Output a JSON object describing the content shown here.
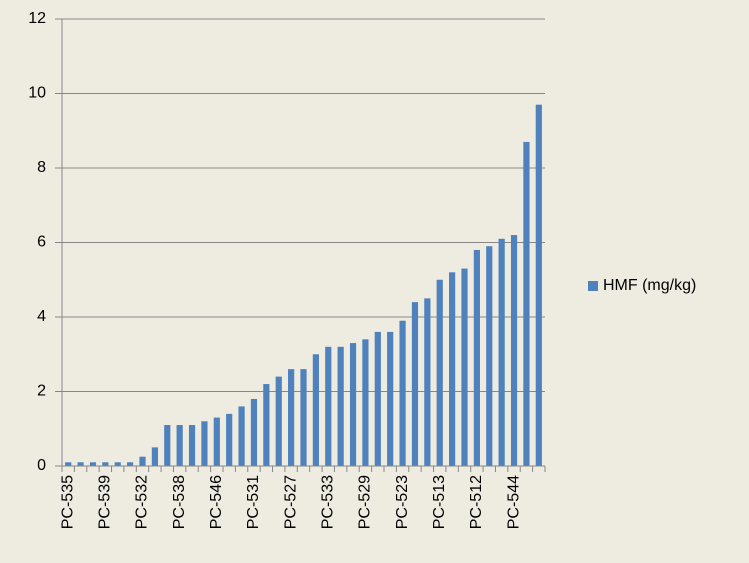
{
  "chart_data": {
    "type": "bar",
    "categories": [
      "PC-535",
      null,
      null,
      "PC-539",
      null,
      null,
      "PC-532",
      null,
      null,
      "PC-538",
      null,
      null,
      "PC-546",
      null,
      null,
      "PC-531",
      null,
      null,
      "PC-527",
      null,
      null,
      "PC-533",
      null,
      null,
      "PC-529",
      null,
      null,
      "PC-523",
      null,
      null,
      "PC-513",
      null,
      null,
      "PC-512",
      null,
      null,
      "PC-544",
      null,
      null
    ],
    "series": [
      {
        "name": "HMF (mg/kg)",
        "color": "#4f81bd",
        "values": [
          0.1,
          0.1,
          0.1,
          0.1,
          0.1,
          0.1,
          0.25,
          0.5,
          1.1,
          1.1,
          1.1,
          1.2,
          1.3,
          1.4,
          1.6,
          1.8,
          2.2,
          2.4,
          2.6,
          2.6,
          3.0,
          3.2,
          3.2,
          3.3,
          3.4,
          3.6,
          3.6,
          3.9,
          4.4,
          4.5,
          5.0,
          5.2,
          5.3,
          5.8,
          5.9,
          6.1,
          6.2,
          8.7,
          9.7
        ]
      }
    ],
    "ylim": [
      0,
      12
    ],
    "yticks": [
      0,
      2,
      4,
      6,
      8,
      10,
      12
    ],
    "grid": true,
    "legend": "right"
  }
}
